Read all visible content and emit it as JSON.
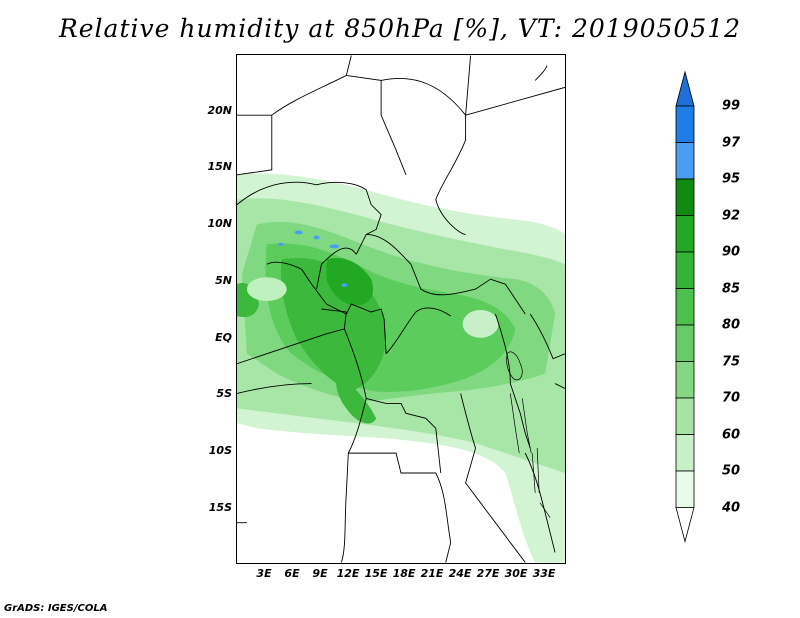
{
  "title": "Relative humidity at 850hPa [%], VT: 2019050512",
  "credit": "GrADS: IGES/COLA",
  "lat_labels": [
    "20N",
    "15N",
    "10N",
    "5N",
    "EQ",
    "5S",
    "10S",
    "15S"
  ],
  "lon_labels": [
    "3E",
    "6E",
    "9E",
    "12E",
    "15E",
    "18E",
    "21E",
    "24E",
    "27E",
    "30E",
    "33E"
  ],
  "colorbar": {
    "levels": [
      "99",
      "97",
      "95",
      "92",
      "90",
      "85",
      "80",
      "75",
      "70",
      "60",
      "50",
      "40"
    ],
    "colors": [
      "#1e6fd8",
      "#1f7ee6",
      "#4a9ef0",
      "#0e8a0e",
      "#22a822",
      "#34b434",
      "#4cc24c",
      "#66cc66",
      "#84d884",
      "#a6e4a6",
      "#c8f0c8",
      "#e8fbe8",
      "#ffffff"
    ]
  }
}
